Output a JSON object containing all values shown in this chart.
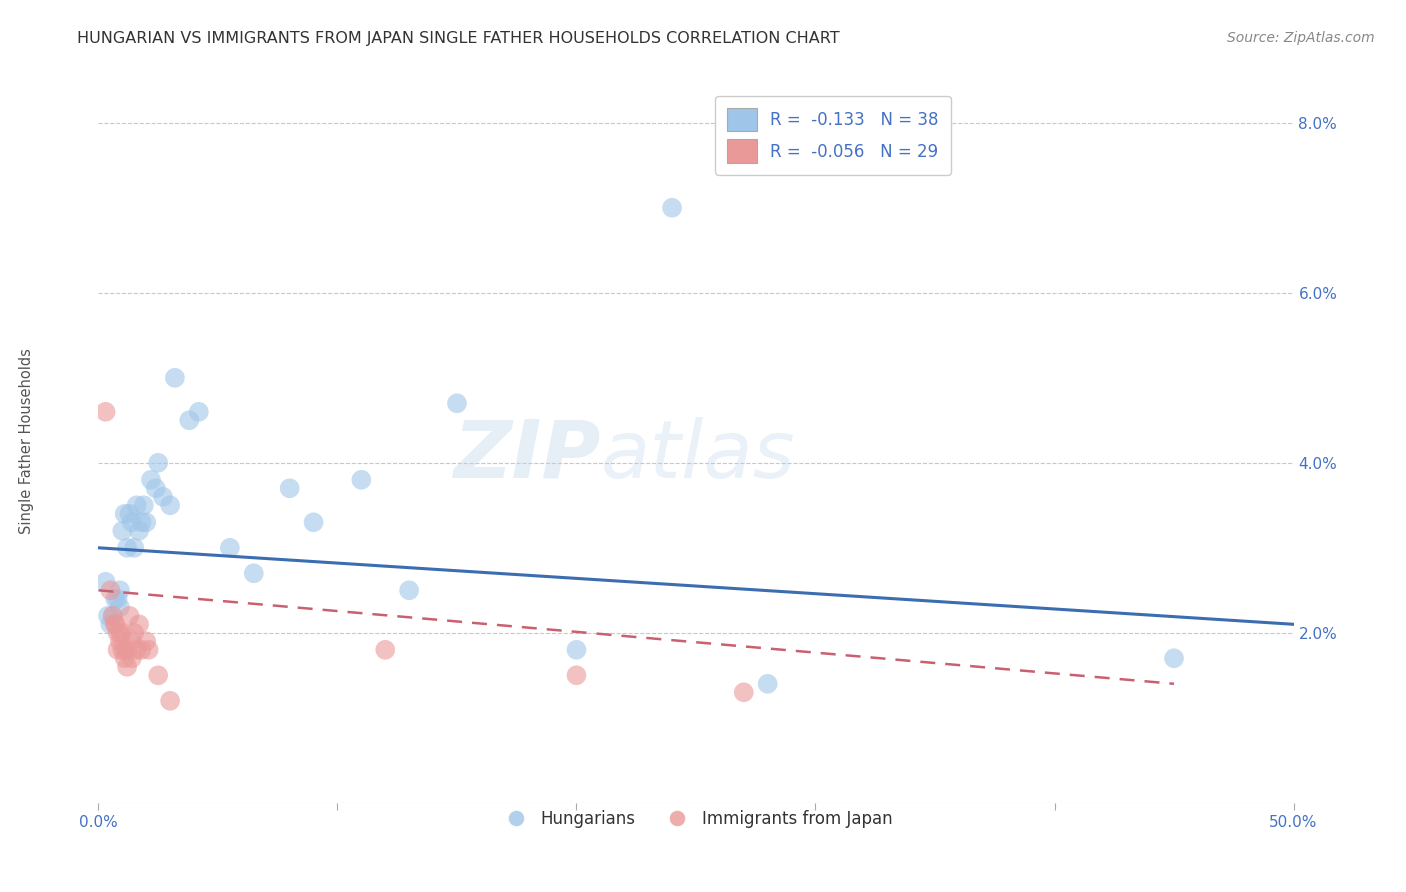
{
  "title": "HUNGARIAN VS IMMIGRANTS FROM JAPAN SINGLE FATHER HOUSEHOLDS CORRELATION CHART",
  "source": "Source: ZipAtlas.com",
  "ylabel": "Single Father Households",
  "xlim": [
    0.0,
    0.5
  ],
  "ylim": [
    0.0,
    0.085
  ],
  "xticks": [
    0.0,
    0.1,
    0.2,
    0.3,
    0.4,
    0.5
  ],
  "xticklabels": [
    "0.0%",
    "",
    "",
    "",
    "",
    "50.0%"
  ],
  "yticks": [
    0.0,
    0.02,
    0.04,
    0.06,
    0.08
  ],
  "yticklabels": [
    "",
    "2.0%",
    "4.0%",
    "6.0%",
    "8.0%"
  ],
  "grid_color": "#c8c8c8",
  "background_color": "#ffffff",
  "watermark_zip": "ZIP",
  "watermark_atlas": "atlas",
  "legend_r1": "R =  -0.133   N = 38",
  "legend_r2": "R =  -0.056   N = 29",
  "blue_color": "#9fc5e8",
  "pink_color": "#ea9999",
  "blue_line_color": "#3c6db0",
  "pink_line_color": "#c96070",
  "blue_scatter": [
    [
      0.003,
      0.026
    ],
    [
      0.004,
      0.022
    ],
    [
      0.005,
      0.021
    ],
    [
      0.006,
      0.022
    ],
    [
      0.007,
      0.024
    ],
    [
      0.008,
      0.024
    ],
    [
      0.009,
      0.025
    ],
    [
      0.009,
      0.023
    ],
    [
      0.01,
      0.032
    ],
    [
      0.011,
      0.034
    ],
    [
      0.012,
      0.03
    ],
    [
      0.013,
      0.034
    ],
    [
      0.014,
      0.033
    ],
    [
      0.015,
      0.03
    ],
    [
      0.016,
      0.035
    ],
    [
      0.017,
      0.032
    ],
    [
      0.018,
      0.033
    ],
    [
      0.019,
      0.035
    ],
    [
      0.02,
      0.033
    ],
    [
      0.022,
      0.038
    ],
    [
      0.024,
      0.037
    ],
    [
      0.025,
      0.04
    ],
    [
      0.027,
      0.036
    ],
    [
      0.03,
      0.035
    ],
    [
      0.032,
      0.05
    ],
    [
      0.038,
      0.045
    ],
    [
      0.042,
      0.046
    ],
    [
      0.055,
      0.03
    ],
    [
      0.065,
      0.027
    ],
    [
      0.08,
      0.037
    ],
    [
      0.09,
      0.033
    ],
    [
      0.11,
      0.038
    ],
    [
      0.13,
      0.025
    ],
    [
      0.15,
      0.047
    ],
    [
      0.2,
      0.018
    ],
    [
      0.24,
      0.07
    ],
    [
      0.28,
      0.014
    ],
    [
      0.45,
      0.017
    ]
  ],
  "pink_scatter": [
    [
      0.003,
      0.046
    ],
    [
      0.005,
      0.025
    ],
    [
      0.006,
      0.022
    ],
    [
      0.007,
      0.021
    ],
    [
      0.007,
      0.021
    ],
    [
      0.008,
      0.02
    ],
    [
      0.008,
      0.018
    ],
    [
      0.009,
      0.02
    ],
    [
      0.009,
      0.019
    ],
    [
      0.01,
      0.018
    ],
    [
      0.01,
      0.02
    ],
    [
      0.011,
      0.018
    ],
    [
      0.011,
      0.017
    ],
    [
      0.012,
      0.018
    ],
    [
      0.012,
      0.016
    ],
    [
      0.013,
      0.022
    ],
    [
      0.014,
      0.019
    ],
    [
      0.014,
      0.017
    ],
    [
      0.015,
      0.02
    ],
    [
      0.016,
      0.018
    ],
    [
      0.017,
      0.021
    ],
    [
      0.018,
      0.018
    ],
    [
      0.02,
      0.019
    ],
    [
      0.021,
      0.018
    ],
    [
      0.025,
      0.015
    ],
    [
      0.03,
      0.012
    ],
    [
      0.12,
      0.018
    ],
    [
      0.2,
      0.015
    ],
    [
      0.27,
      0.013
    ]
  ],
  "title_fontsize": 11.5,
  "axis_label_fontsize": 10.5,
  "tick_fontsize": 11,
  "legend_fontsize": 12,
  "source_fontsize": 10
}
